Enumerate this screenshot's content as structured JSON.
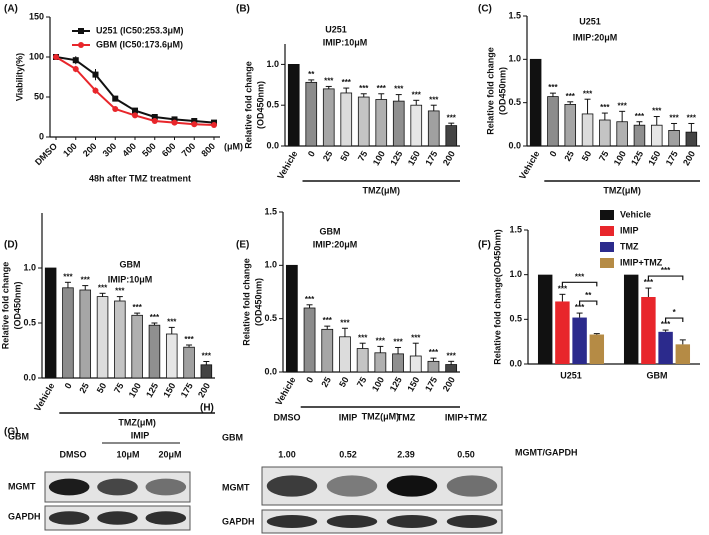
{
  "chart_data": [
    {
      "panel": "(A)",
      "type": "line",
      "x_label": "48h after TMZ treatment",
      "x_unit": "(μM)",
      "y_label": "Viability(%)",
      "categories": [
        "DMSO",
        "100",
        "200",
        "300",
        "400",
        "500",
        "600",
        "700",
        "800"
      ],
      "series": [
        {
          "name": "U251  (IC50:253.3μM)",
          "color": "#111111",
          "values": [
            100,
            96,
            78,
            48,
            33,
            25,
            22,
            20,
            18
          ],
          "errors": [
            2,
            5,
            7,
            3,
            3,
            2,
            2,
            2,
            2
          ]
        },
        {
          "name": "GBM  (IC50:173.6μM)",
          "color": "#e8262b",
          "values": [
            100,
            85,
            58,
            35,
            27,
            20,
            18,
            16,
            15
          ],
          "errors": [
            1,
            4,
            4,
            3,
            2,
            2,
            2,
            2,
            1
          ]
        }
      ],
      "ylim": [
        0,
        150
      ],
      "yticks": [
        0,
        50,
        100,
        150
      ],
      "legend": "top"
    },
    {
      "panel": "(B)",
      "type": "bar",
      "title": "U251",
      "subtitle": "IMIP:10μM",
      "y_label": [
        "Relative fold change",
        "(OD450nm)"
      ],
      "x_label": "TMZ(μM)",
      "categories": [
        "Vehicle",
        "0",
        "25",
        "50",
        "75",
        "100",
        "125",
        "150",
        "175",
        "200"
      ],
      "values": [
        1.0,
        0.78,
        0.7,
        0.65,
        0.6,
        0.57,
        0.55,
        0.5,
        0.43,
        0.25
      ],
      "errors": [
        0,
        0.03,
        0.03,
        0.06,
        0.04,
        0.07,
        0.08,
        0.06,
        0.07,
        0.03
      ],
      "significance": [
        null,
        "**",
        "***",
        "***",
        "***",
        "***",
        "***",
        "***",
        "***",
        "***"
      ],
      "colors": [
        "#111111",
        "#8c8c8c",
        "#a6a6a6",
        "#dcdcdc",
        "#c4c4c4",
        "#b0b0b0",
        "#8f8f8f",
        "#e6e6e6",
        "#a0a0a0",
        "#444444"
      ],
      "ylim": [
        0,
        1.25
      ],
      "yticks": [
        {
          "value": 0,
          "label": "0.0"
        },
        {
          "value": 0.5,
          "label": "0.5"
        },
        {
          "value": 1,
          "label": "1.0"
        }
      ]
    },
    {
      "panel": "(C)",
      "type": "bar",
      "title": "U251",
      "subtitle": "IMIP:20μM",
      "y_label": [
        "Relative fold change",
        "(OD450nm)"
      ],
      "x_label": "TMZ(μM)",
      "categories": [
        "Vehicle",
        "0",
        "25",
        "50",
        "75",
        "100",
        "125",
        "150",
        "175",
        "200"
      ],
      "values": [
        1.0,
        0.57,
        0.48,
        0.37,
        0.3,
        0.28,
        0.24,
        0.24,
        0.18,
        0.16
      ],
      "errors": [
        0,
        0.04,
        0.03,
        0.17,
        0.08,
        0.12,
        0.04,
        0.1,
        0.08,
        0.1
      ],
      "significance": [
        null,
        "***",
        "***",
        "***",
        "***",
        "***",
        "***",
        "***",
        "***",
        "***"
      ],
      "colors": [
        "#111111",
        "#8c8c8c",
        "#a6a6a6",
        "#dcdcdc",
        "#c4c4c4",
        "#b0b0b0",
        "#8f8f8f",
        "#e6e6e6",
        "#a0a0a0",
        "#444444"
      ],
      "ylim": [
        0,
        1.5
      ],
      "yticks": [
        {
          "value": 0,
          "label": "0.0"
        },
        {
          "value": 0.5,
          "label": "0.5"
        },
        {
          "value": 1,
          "label": "1.0"
        },
        {
          "value": 1.5,
          "label": "1.5"
        }
      ]
    },
    {
      "panel": "(D)",
      "type": "bar",
      "title": "GBM",
      "subtitle": "IMIP:10μM",
      "y_label": [
        "Relative fold change",
        "(OD450nm)"
      ],
      "x_label": "TMZ(μM)",
      "categories": [
        "Vehicle",
        "0",
        "25",
        "50",
        "75",
        "100",
        "125",
        "150",
        "175",
        "200"
      ],
      "values": [
        1.0,
        0.82,
        0.8,
        0.74,
        0.7,
        0.57,
        0.48,
        0.4,
        0.28,
        0.12
      ],
      "errors": [
        0,
        0.05,
        0.04,
        0.03,
        0.04,
        0.02,
        0.02,
        0.06,
        0.02,
        0.03
      ],
      "significance": [
        null,
        "***",
        "***",
        "***",
        "***",
        "***",
        "***",
        "***",
        "***",
        "***"
      ],
      "colors": [
        "#111111",
        "#8c8c8c",
        "#a6a6a6",
        "#dcdcdc",
        "#c4c4c4",
        "#b0b0b0",
        "#8f8f8f",
        "#e6e6e6",
        "#a0a0a0",
        "#444444"
      ],
      "ylim": [
        0,
        1.5
      ],
      "yticks": [
        {
          "value": 0,
          "label": "0.0"
        },
        {
          "value": 0.5,
          "label": "0.5"
        },
        {
          "value": 1,
          "label": "1.0"
        }
      ]
    },
    {
      "panel": "(E)",
      "type": "bar",
      "title": "GBM",
      "subtitle": "IMIP:20μM",
      "y_label": [
        "Relative fold change",
        "(OD450nm)"
      ],
      "x_label": "TMZ(μM)",
      "categories": [
        "Vehicle",
        "0",
        "25",
        "50",
        "75",
        "100",
        "125",
        "150",
        "175",
        "200"
      ],
      "values": [
        1.0,
        0.6,
        0.4,
        0.33,
        0.22,
        0.18,
        0.17,
        0.15,
        0.1,
        0.07
      ],
      "errors": [
        0,
        0.03,
        0.03,
        0.08,
        0.05,
        0.06,
        0.06,
        0.12,
        0.03,
        0.03
      ],
      "significance": [
        null,
        "***",
        "***",
        "***",
        "***",
        "***",
        "***",
        "***",
        "***",
        "***"
      ],
      "colors": [
        "#111111",
        "#8c8c8c",
        "#a6a6a6",
        "#dcdcdc",
        "#c4c4c4",
        "#b0b0b0",
        "#8f8f8f",
        "#e6e6e6",
        "#a0a0a0",
        "#444444"
      ],
      "ylim": [
        0,
        1.5
      ],
      "yticks": [
        {
          "value": 0,
          "label": "0.0"
        },
        {
          "value": 0.5,
          "label": "0.5"
        },
        {
          "value": 1,
          "label": "1.0"
        },
        {
          "value": 1.5,
          "label": "1.5"
        }
      ]
    },
    {
      "panel": "(F)",
      "type": "grouped_bar",
      "y_label": "Relative fold change(OD450nm)",
      "categories": [
        "U251",
        "GBM"
      ],
      "series": [
        {
          "name": "Vehicle",
          "color": "#111111",
          "values": [
            1.0,
            1.0
          ],
          "errors": [
            0,
            0
          ],
          "significance": [
            null,
            null
          ]
        },
        {
          "name": "IMIP",
          "color": "#e8262b",
          "values": [
            0.7,
            0.75
          ],
          "errors": [
            0.08,
            0.1
          ],
          "significance": [
            "***",
            "***"
          ]
        },
        {
          "name": "TMZ",
          "color": "#2b2a8c",
          "values": [
            0.52,
            0.36
          ],
          "errors": [
            0.05,
            0.02
          ],
          "significance": [
            "***",
            "***"
          ]
        },
        {
          "name": "IMIP+TMZ",
          "color": "#b58b45",
          "values": [
            0.33,
            0.22
          ],
          "errors": [
            0.01,
            0.05
          ],
          "significance": [
            null,
            null
          ]
        }
      ],
      "comparisons": [
        {
          "category": 0,
          "series": [
            1,
            3
          ],
          "label": "***"
        },
        {
          "category": 0,
          "series": [
            2,
            3
          ],
          "label": "**"
        },
        {
          "category": 1,
          "series": [
            1,
            3
          ],
          "label": "***"
        },
        {
          "category": 1,
          "series": [
            2,
            3
          ],
          "label": "*"
        }
      ],
      "ylim": [
        0,
        1.5
      ],
      "yticks": [
        {
          "value": 0,
          "label": "0.0"
        },
        {
          "value": 0.5,
          "label": "0.5"
        },
        {
          "value": 1,
          "label": "1.0"
        },
        {
          "value": 1.5,
          "label": "1.5"
        }
      ],
      "legend": "top"
    }
  ],
  "blots": [
    {
      "panel": "(G)",
      "cell_line": "GBM",
      "group_label": "IMIP",
      "lanes": [
        "DMSO",
        "10μM",
        "20μM"
      ],
      "rows": [
        "MGMT",
        "GAPDH"
      ]
    },
    {
      "panel": "(H)",
      "cell_line": "GBM",
      "lanes": [
        "DMSO",
        "IMIP",
        "TMZ",
        "IMIP+TMZ"
      ],
      "ratios": [
        "1.00",
        "0.52",
        "2.39",
        "0.50"
      ],
      "ratio_label": "MGMT/GAPDH",
      "rows": [
        "MGMT",
        "GAPDH"
      ]
    }
  ]
}
